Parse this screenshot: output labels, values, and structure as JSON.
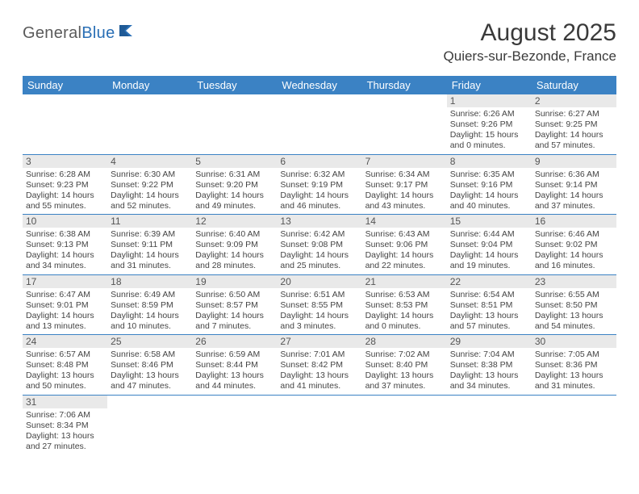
{
  "brand": {
    "part1": "General",
    "part2": "Blue"
  },
  "title": "August 2025",
  "location": "Quiers-sur-Bezonde, France",
  "colors": {
    "header_bg": "#3b82c4",
    "header_text": "#ffffff",
    "daynum_bg": "#e9e9e9",
    "cell_border": "#3b82c4",
    "body_text": "#444444",
    "title_text": "#3a3a3a",
    "logo_gray": "#5a5a5a",
    "logo_blue": "#2a6fb5"
  },
  "typography": {
    "title_fontsize": 30,
    "location_fontsize": 17,
    "dayheader_fontsize": 13,
    "daynum_fontsize": 12,
    "cell_fontsize": 10.5
  },
  "day_headers": [
    "Sunday",
    "Monday",
    "Tuesday",
    "Wednesday",
    "Thursday",
    "Friday",
    "Saturday"
  ],
  "weeks": [
    [
      null,
      null,
      null,
      null,
      null,
      {
        "n": "1",
        "sr": "Sunrise: 6:26 AM",
        "ss": "Sunset: 9:26 PM",
        "d1": "Daylight: 15 hours",
        "d2": "and 0 minutes."
      },
      {
        "n": "2",
        "sr": "Sunrise: 6:27 AM",
        "ss": "Sunset: 9:25 PM",
        "d1": "Daylight: 14 hours",
        "d2": "and 57 minutes."
      }
    ],
    [
      {
        "n": "3",
        "sr": "Sunrise: 6:28 AM",
        "ss": "Sunset: 9:23 PM",
        "d1": "Daylight: 14 hours",
        "d2": "and 55 minutes."
      },
      {
        "n": "4",
        "sr": "Sunrise: 6:30 AM",
        "ss": "Sunset: 9:22 PM",
        "d1": "Daylight: 14 hours",
        "d2": "and 52 minutes."
      },
      {
        "n": "5",
        "sr": "Sunrise: 6:31 AM",
        "ss": "Sunset: 9:20 PM",
        "d1": "Daylight: 14 hours",
        "d2": "and 49 minutes."
      },
      {
        "n": "6",
        "sr": "Sunrise: 6:32 AM",
        "ss": "Sunset: 9:19 PM",
        "d1": "Daylight: 14 hours",
        "d2": "and 46 minutes."
      },
      {
        "n": "7",
        "sr": "Sunrise: 6:34 AM",
        "ss": "Sunset: 9:17 PM",
        "d1": "Daylight: 14 hours",
        "d2": "and 43 minutes."
      },
      {
        "n": "8",
        "sr": "Sunrise: 6:35 AM",
        "ss": "Sunset: 9:16 PM",
        "d1": "Daylight: 14 hours",
        "d2": "and 40 minutes."
      },
      {
        "n": "9",
        "sr": "Sunrise: 6:36 AM",
        "ss": "Sunset: 9:14 PM",
        "d1": "Daylight: 14 hours",
        "d2": "and 37 minutes."
      }
    ],
    [
      {
        "n": "10",
        "sr": "Sunrise: 6:38 AM",
        "ss": "Sunset: 9:13 PM",
        "d1": "Daylight: 14 hours",
        "d2": "and 34 minutes."
      },
      {
        "n": "11",
        "sr": "Sunrise: 6:39 AM",
        "ss": "Sunset: 9:11 PM",
        "d1": "Daylight: 14 hours",
        "d2": "and 31 minutes."
      },
      {
        "n": "12",
        "sr": "Sunrise: 6:40 AM",
        "ss": "Sunset: 9:09 PM",
        "d1": "Daylight: 14 hours",
        "d2": "and 28 minutes."
      },
      {
        "n": "13",
        "sr": "Sunrise: 6:42 AM",
        "ss": "Sunset: 9:08 PM",
        "d1": "Daylight: 14 hours",
        "d2": "and 25 minutes."
      },
      {
        "n": "14",
        "sr": "Sunrise: 6:43 AM",
        "ss": "Sunset: 9:06 PM",
        "d1": "Daylight: 14 hours",
        "d2": "and 22 minutes."
      },
      {
        "n": "15",
        "sr": "Sunrise: 6:44 AM",
        "ss": "Sunset: 9:04 PM",
        "d1": "Daylight: 14 hours",
        "d2": "and 19 minutes."
      },
      {
        "n": "16",
        "sr": "Sunrise: 6:46 AM",
        "ss": "Sunset: 9:02 PM",
        "d1": "Daylight: 14 hours",
        "d2": "and 16 minutes."
      }
    ],
    [
      {
        "n": "17",
        "sr": "Sunrise: 6:47 AM",
        "ss": "Sunset: 9:01 PM",
        "d1": "Daylight: 14 hours",
        "d2": "and 13 minutes."
      },
      {
        "n": "18",
        "sr": "Sunrise: 6:49 AM",
        "ss": "Sunset: 8:59 PM",
        "d1": "Daylight: 14 hours",
        "d2": "and 10 minutes."
      },
      {
        "n": "19",
        "sr": "Sunrise: 6:50 AM",
        "ss": "Sunset: 8:57 PM",
        "d1": "Daylight: 14 hours",
        "d2": "and 7 minutes."
      },
      {
        "n": "20",
        "sr": "Sunrise: 6:51 AM",
        "ss": "Sunset: 8:55 PM",
        "d1": "Daylight: 14 hours",
        "d2": "and 3 minutes."
      },
      {
        "n": "21",
        "sr": "Sunrise: 6:53 AM",
        "ss": "Sunset: 8:53 PM",
        "d1": "Daylight: 14 hours",
        "d2": "and 0 minutes."
      },
      {
        "n": "22",
        "sr": "Sunrise: 6:54 AM",
        "ss": "Sunset: 8:51 PM",
        "d1": "Daylight: 13 hours",
        "d2": "and 57 minutes."
      },
      {
        "n": "23",
        "sr": "Sunrise: 6:55 AM",
        "ss": "Sunset: 8:50 PM",
        "d1": "Daylight: 13 hours",
        "d2": "and 54 minutes."
      }
    ],
    [
      {
        "n": "24",
        "sr": "Sunrise: 6:57 AM",
        "ss": "Sunset: 8:48 PM",
        "d1": "Daylight: 13 hours",
        "d2": "and 50 minutes."
      },
      {
        "n": "25",
        "sr": "Sunrise: 6:58 AM",
        "ss": "Sunset: 8:46 PM",
        "d1": "Daylight: 13 hours",
        "d2": "and 47 minutes."
      },
      {
        "n": "26",
        "sr": "Sunrise: 6:59 AM",
        "ss": "Sunset: 8:44 PM",
        "d1": "Daylight: 13 hours",
        "d2": "and 44 minutes."
      },
      {
        "n": "27",
        "sr": "Sunrise: 7:01 AM",
        "ss": "Sunset: 8:42 PM",
        "d1": "Daylight: 13 hours",
        "d2": "and 41 minutes."
      },
      {
        "n": "28",
        "sr": "Sunrise: 7:02 AM",
        "ss": "Sunset: 8:40 PM",
        "d1": "Daylight: 13 hours",
        "d2": "and 37 minutes."
      },
      {
        "n": "29",
        "sr": "Sunrise: 7:04 AM",
        "ss": "Sunset: 8:38 PM",
        "d1": "Daylight: 13 hours",
        "d2": "and 34 minutes."
      },
      {
        "n": "30",
        "sr": "Sunrise: 7:05 AM",
        "ss": "Sunset: 8:36 PM",
        "d1": "Daylight: 13 hours",
        "d2": "and 31 minutes."
      }
    ],
    [
      {
        "n": "31",
        "sr": "Sunrise: 7:06 AM",
        "ss": "Sunset: 8:34 PM",
        "d1": "Daylight: 13 hours",
        "d2": "and 27 minutes."
      },
      null,
      null,
      null,
      null,
      null,
      null
    ]
  ]
}
